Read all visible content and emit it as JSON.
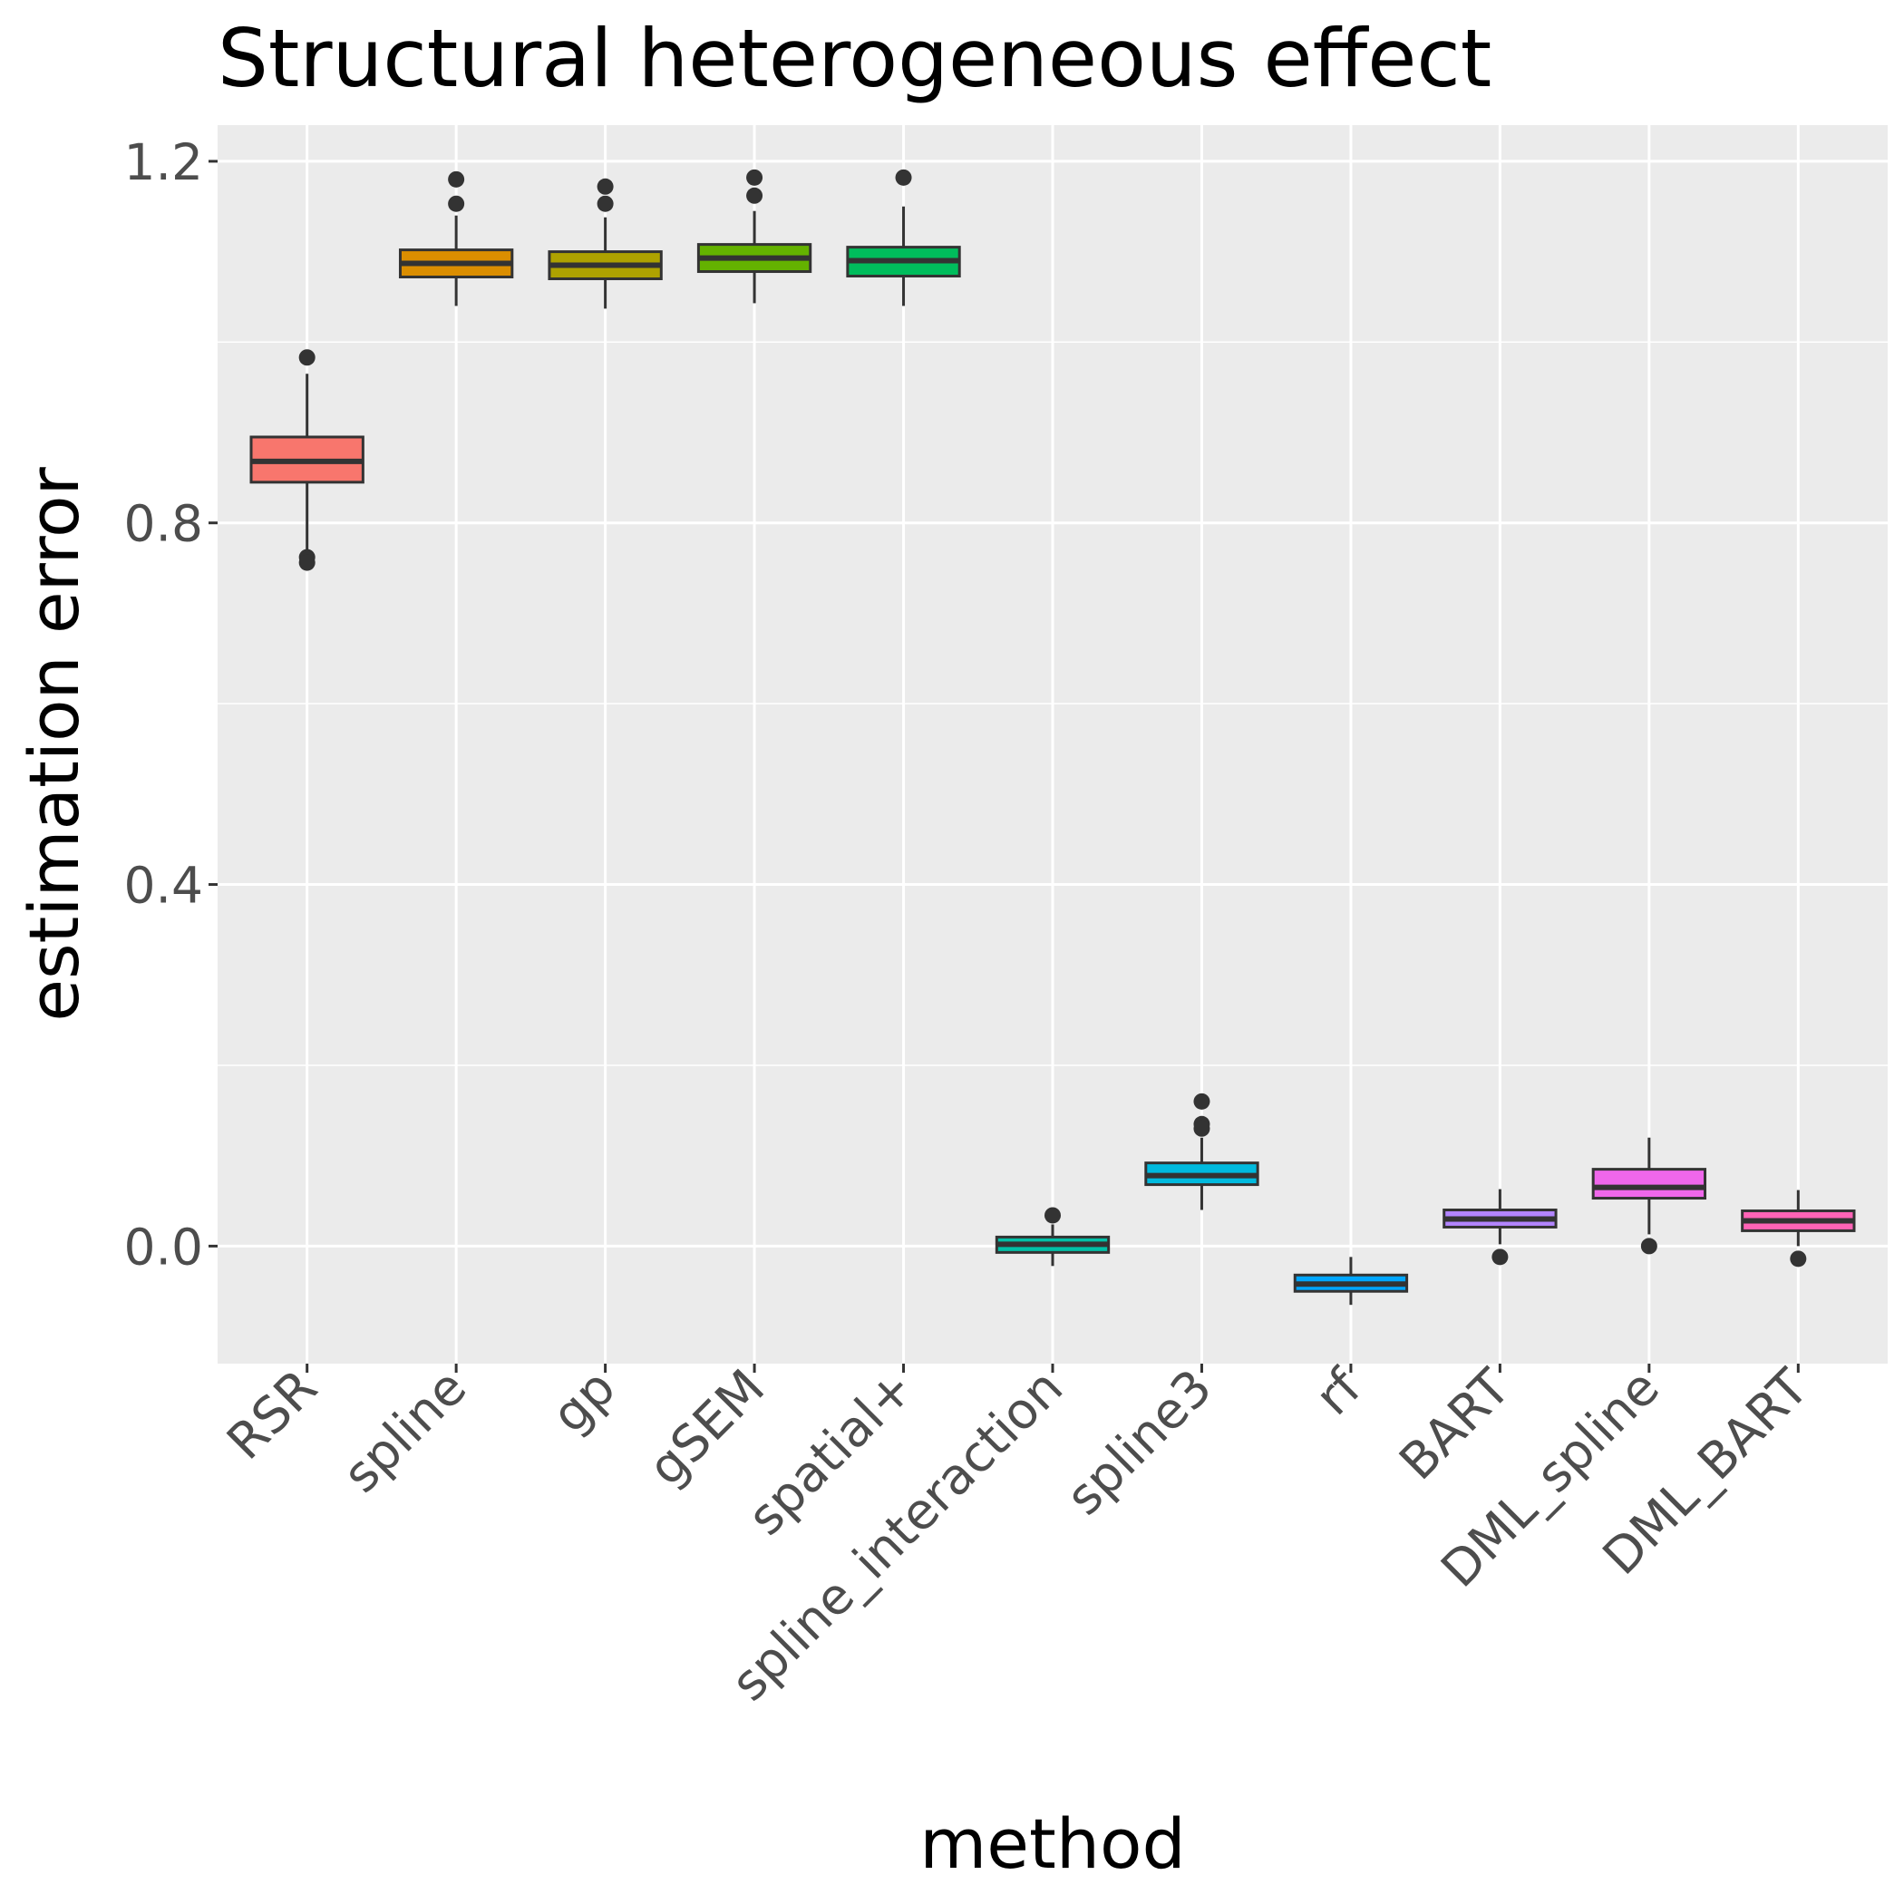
{
  "chart_data": {
    "type": "boxplot",
    "title": "Structural heterogeneous effect",
    "xlabel": "method",
    "ylabel": "estimation error",
    "ylim": [
      -0.13,
      1.24
    ],
    "yticks": [
      0.0,
      0.4,
      0.8,
      1.2
    ],
    "ytick_labels": [
      "0.0",
      "0.4",
      "0.8",
      "1.2"
    ],
    "grid": true,
    "legend": "none",
    "categories": [
      "RSR",
      "spline",
      "gp",
      "gSEM",
      "spatial+",
      "spline_interaction",
      "spline3",
      "rf",
      "BART",
      "DML_spline",
      "DML_BART"
    ],
    "series": [
      {
        "name": "RSR",
        "color": "#F8766D",
        "whisker_low": 0.77,
        "q1": 0.845,
        "median": 0.868,
        "q3": 0.895,
        "whisker_high": 0.965,
        "outliers": [
          0.983,
          0.762,
          0.756
        ]
      },
      {
        "name": "spline",
        "color": "#DB8E00",
        "whisker_low": 1.04,
        "q1": 1.072,
        "median": 1.087,
        "q3": 1.102,
        "whisker_high": 1.14,
        "outliers": [
          1.18,
          1.153
        ]
      },
      {
        "name": "gp",
        "color": "#AEA200",
        "whisker_low": 1.037,
        "q1": 1.07,
        "median": 1.085,
        "q3": 1.1,
        "whisker_high": 1.138,
        "outliers": [
          1.172,
          1.153
        ]
      },
      {
        "name": "gSEM",
        "color": "#64B200",
        "whisker_low": 1.043,
        "q1": 1.078,
        "median": 1.093,
        "q3": 1.108,
        "whisker_high": 1.145,
        "outliers": [
          1.182,
          1.162
        ]
      },
      {
        "name": "spatial+",
        "color": "#00BD5C",
        "whisker_low": 1.04,
        "q1": 1.073,
        "median": 1.09,
        "q3": 1.105,
        "whisker_high": 1.15,
        "outliers": [
          1.182
        ]
      },
      {
        "name": "spline_interaction",
        "color": "#00C1A7",
        "whisker_low": -0.022,
        "q1": -0.007,
        "median": 0.002,
        "q3": 0.01,
        "whisker_high": 0.024,
        "outliers": [
          0.034
        ]
      },
      {
        "name": "spline3",
        "color": "#00BADE",
        "whisker_low": 0.04,
        "q1": 0.068,
        "median": 0.078,
        "q3": 0.092,
        "whisker_high": 0.12,
        "outliers": [
          0.16,
          0.135,
          0.13
        ]
      },
      {
        "name": "rf",
        "color": "#00A6FF",
        "whisker_low": -0.065,
        "q1": -0.05,
        "median": -0.042,
        "q3": -0.032,
        "whisker_high": -0.012,
        "outliers": []
      },
      {
        "name": "BART",
        "color": "#B385FF",
        "whisker_low": 0.002,
        "q1": 0.021,
        "median": 0.03,
        "q3": 0.04,
        "whisker_high": 0.063,
        "outliers": [
          -0.012
        ]
      },
      {
        "name": "DML_spline",
        "color": "#EF67EB",
        "whisker_low": 0.013,
        "q1": 0.053,
        "median": 0.065,
        "q3": 0.085,
        "whisker_high": 0.12,
        "outliers": [
          0.0
        ]
      },
      {
        "name": "DML_BART",
        "color": "#FF63B6",
        "whisker_low": 0.0,
        "q1": 0.017,
        "median": 0.028,
        "q3": 0.039,
        "whisker_high": 0.062,
        "outliers": [
          -0.014
        ]
      }
    ]
  }
}
